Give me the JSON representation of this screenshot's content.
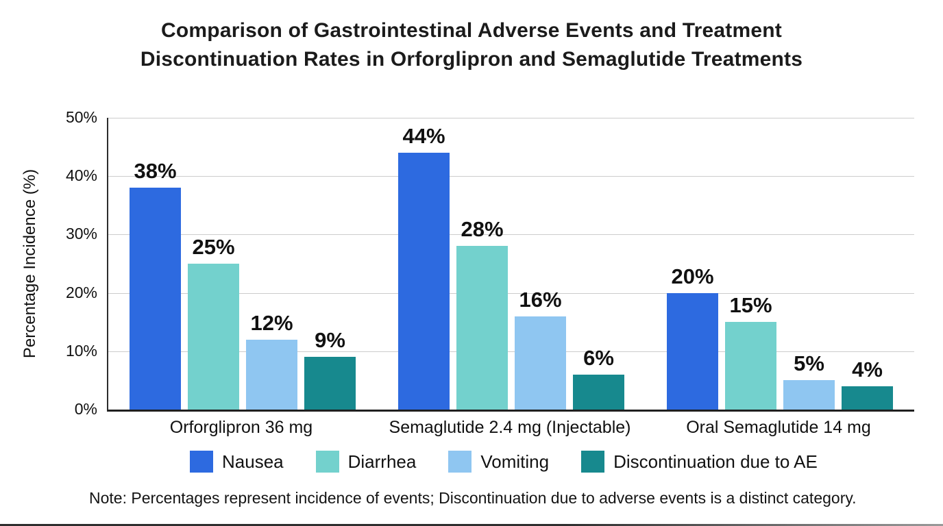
{
  "chart_data": {
    "type": "bar",
    "title": "Comparison of Gastrointestinal Adverse Events and Treatment Discontinuation Rates in Orforglipron and Semaglutide Treatments",
    "title_lines": [
      "Comparison of Gastrointestinal Adverse Events and Treatment",
      "Discontinuation Rates in Orforglipron and Semaglutide Treatments"
    ],
    "categories": [
      "Orforglipron 36 mg",
      "Semaglutide 2.4 mg (Injectable)",
      "Oral Semaglutide 14 mg"
    ],
    "series": [
      {
        "name": "Nausea",
        "color": "#2d6ae0",
        "values": [
          38,
          44,
          20
        ]
      },
      {
        "name": "Diarrhea",
        "color": "#73d1cd",
        "values": [
          25,
          28,
          15
        ]
      },
      {
        "name": "Vomiting",
        "color": "#8fc6f1",
        "values": [
          12,
          16,
          5
        ]
      },
      {
        "name": "Discontinuation due to AE",
        "color": "#17898e",
        "values": [
          9,
          6,
          4
        ]
      }
    ],
    "value_labels": [
      [
        "38%",
        "44%",
        "20%"
      ],
      [
        "25%",
        "28%",
        "15%"
      ],
      [
        "12%",
        "16%",
        "5%"
      ],
      [
        "9%",
        "6%",
        "4%"
      ]
    ],
    "ylabel": "Percentage Incidence (%)",
    "xlabel": "",
    "ylim": [
      0,
      50
    ],
    "yticks": [
      {
        "value": 0,
        "label": "0%"
      },
      {
        "value": 10,
        "label": "10%"
      },
      {
        "value": 20,
        "label": "20%"
      },
      {
        "value": 30,
        "label": "30%"
      },
      {
        "value": 40,
        "label": "40%"
      },
      {
        "value": 50,
        "label": "50%"
      }
    ],
    "grid": true,
    "legend_position": "bottom",
    "note": "Note: Percentages represent incidence of events; Discontinuation due to adverse events is a distinct category.",
    "colors": {
      "nausea": "#2d6ae0",
      "diarrhea": "#73d1cd",
      "vomiting": "#8fc6f1",
      "discontinuation": "#17898e",
      "gridline": "#cccccc",
      "axis": "#1f1f1f",
      "text": "#111111"
    }
  }
}
